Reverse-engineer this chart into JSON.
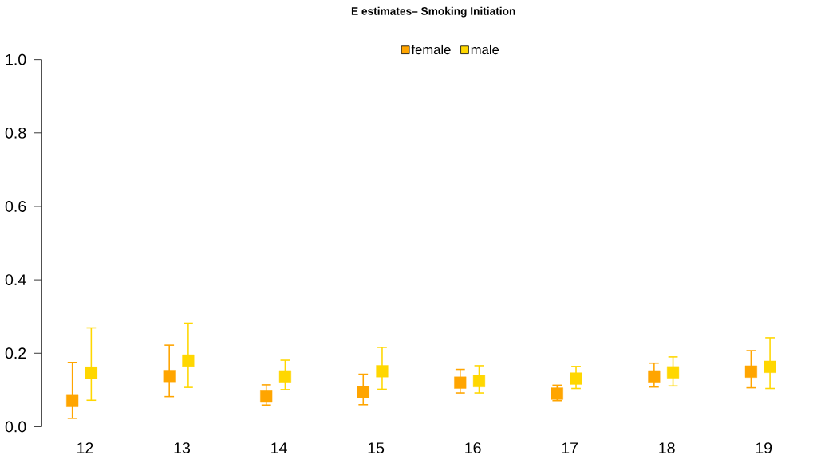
{
  "chart_data": {
    "type": "scatter",
    "title": "E estimates– Smoking Initiation",
    "categories": [
      "12",
      "13",
      "14",
      "15",
      "16",
      "17",
      "18",
      "19"
    ],
    "series": [
      {
        "name": "female",
        "color": "#ffa500",
        "values": [
          0.07,
          0.138,
          0.082,
          0.094,
          0.12,
          0.09,
          0.137,
          0.15
        ],
        "errors": [
          [
            0.023,
            0.175
          ],
          [
            0.082,
            0.222
          ],
          [
            0.059,
            0.114
          ],
          [
            0.06,
            0.143
          ],
          [
            0.092,
            0.156
          ],
          [
            0.071,
            0.113
          ],
          [
            0.108,
            0.173
          ],
          [
            0.106,
            0.207
          ]
        ]
      },
      {
        "name": "male",
        "color": "#ffd700",
        "values": [
          0.147,
          0.18,
          0.137,
          0.151,
          0.124,
          0.131,
          0.148,
          0.163
        ],
        "errors": [
          [
            0.072,
            0.269
          ],
          [
            0.107,
            0.282
          ],
          [
            0.101,
            0.181
          ],
          [
            0.102,
            0.216
          ],
          [
            0.092,
            0.166
          ],
          [
            0.104,
            0.164
          ],
          [
            0.111,
            0.19
          ],
          [
            0.104,
            0.242
          ]
        ]
      }
    ],
    "ylim": [
      0,
      1
    ],
    "yticks": [
      {
        "value": 0,
        "label": "0.0"
      },
      {
        "value": 0.2,
        "label": "0.2"
      },
      {
        "value": 0.4,
        "label": "0.4"
      },
      {
        "value": 0.6,
        "label": "0.6"
      },
      {
        "value": 0.8,
        "label": "0.8"
      },
      {
        "value": 1,
        "label": "1.0"
      }
    ],
    "marker": "square",
    "legend": "top"
  }
}
